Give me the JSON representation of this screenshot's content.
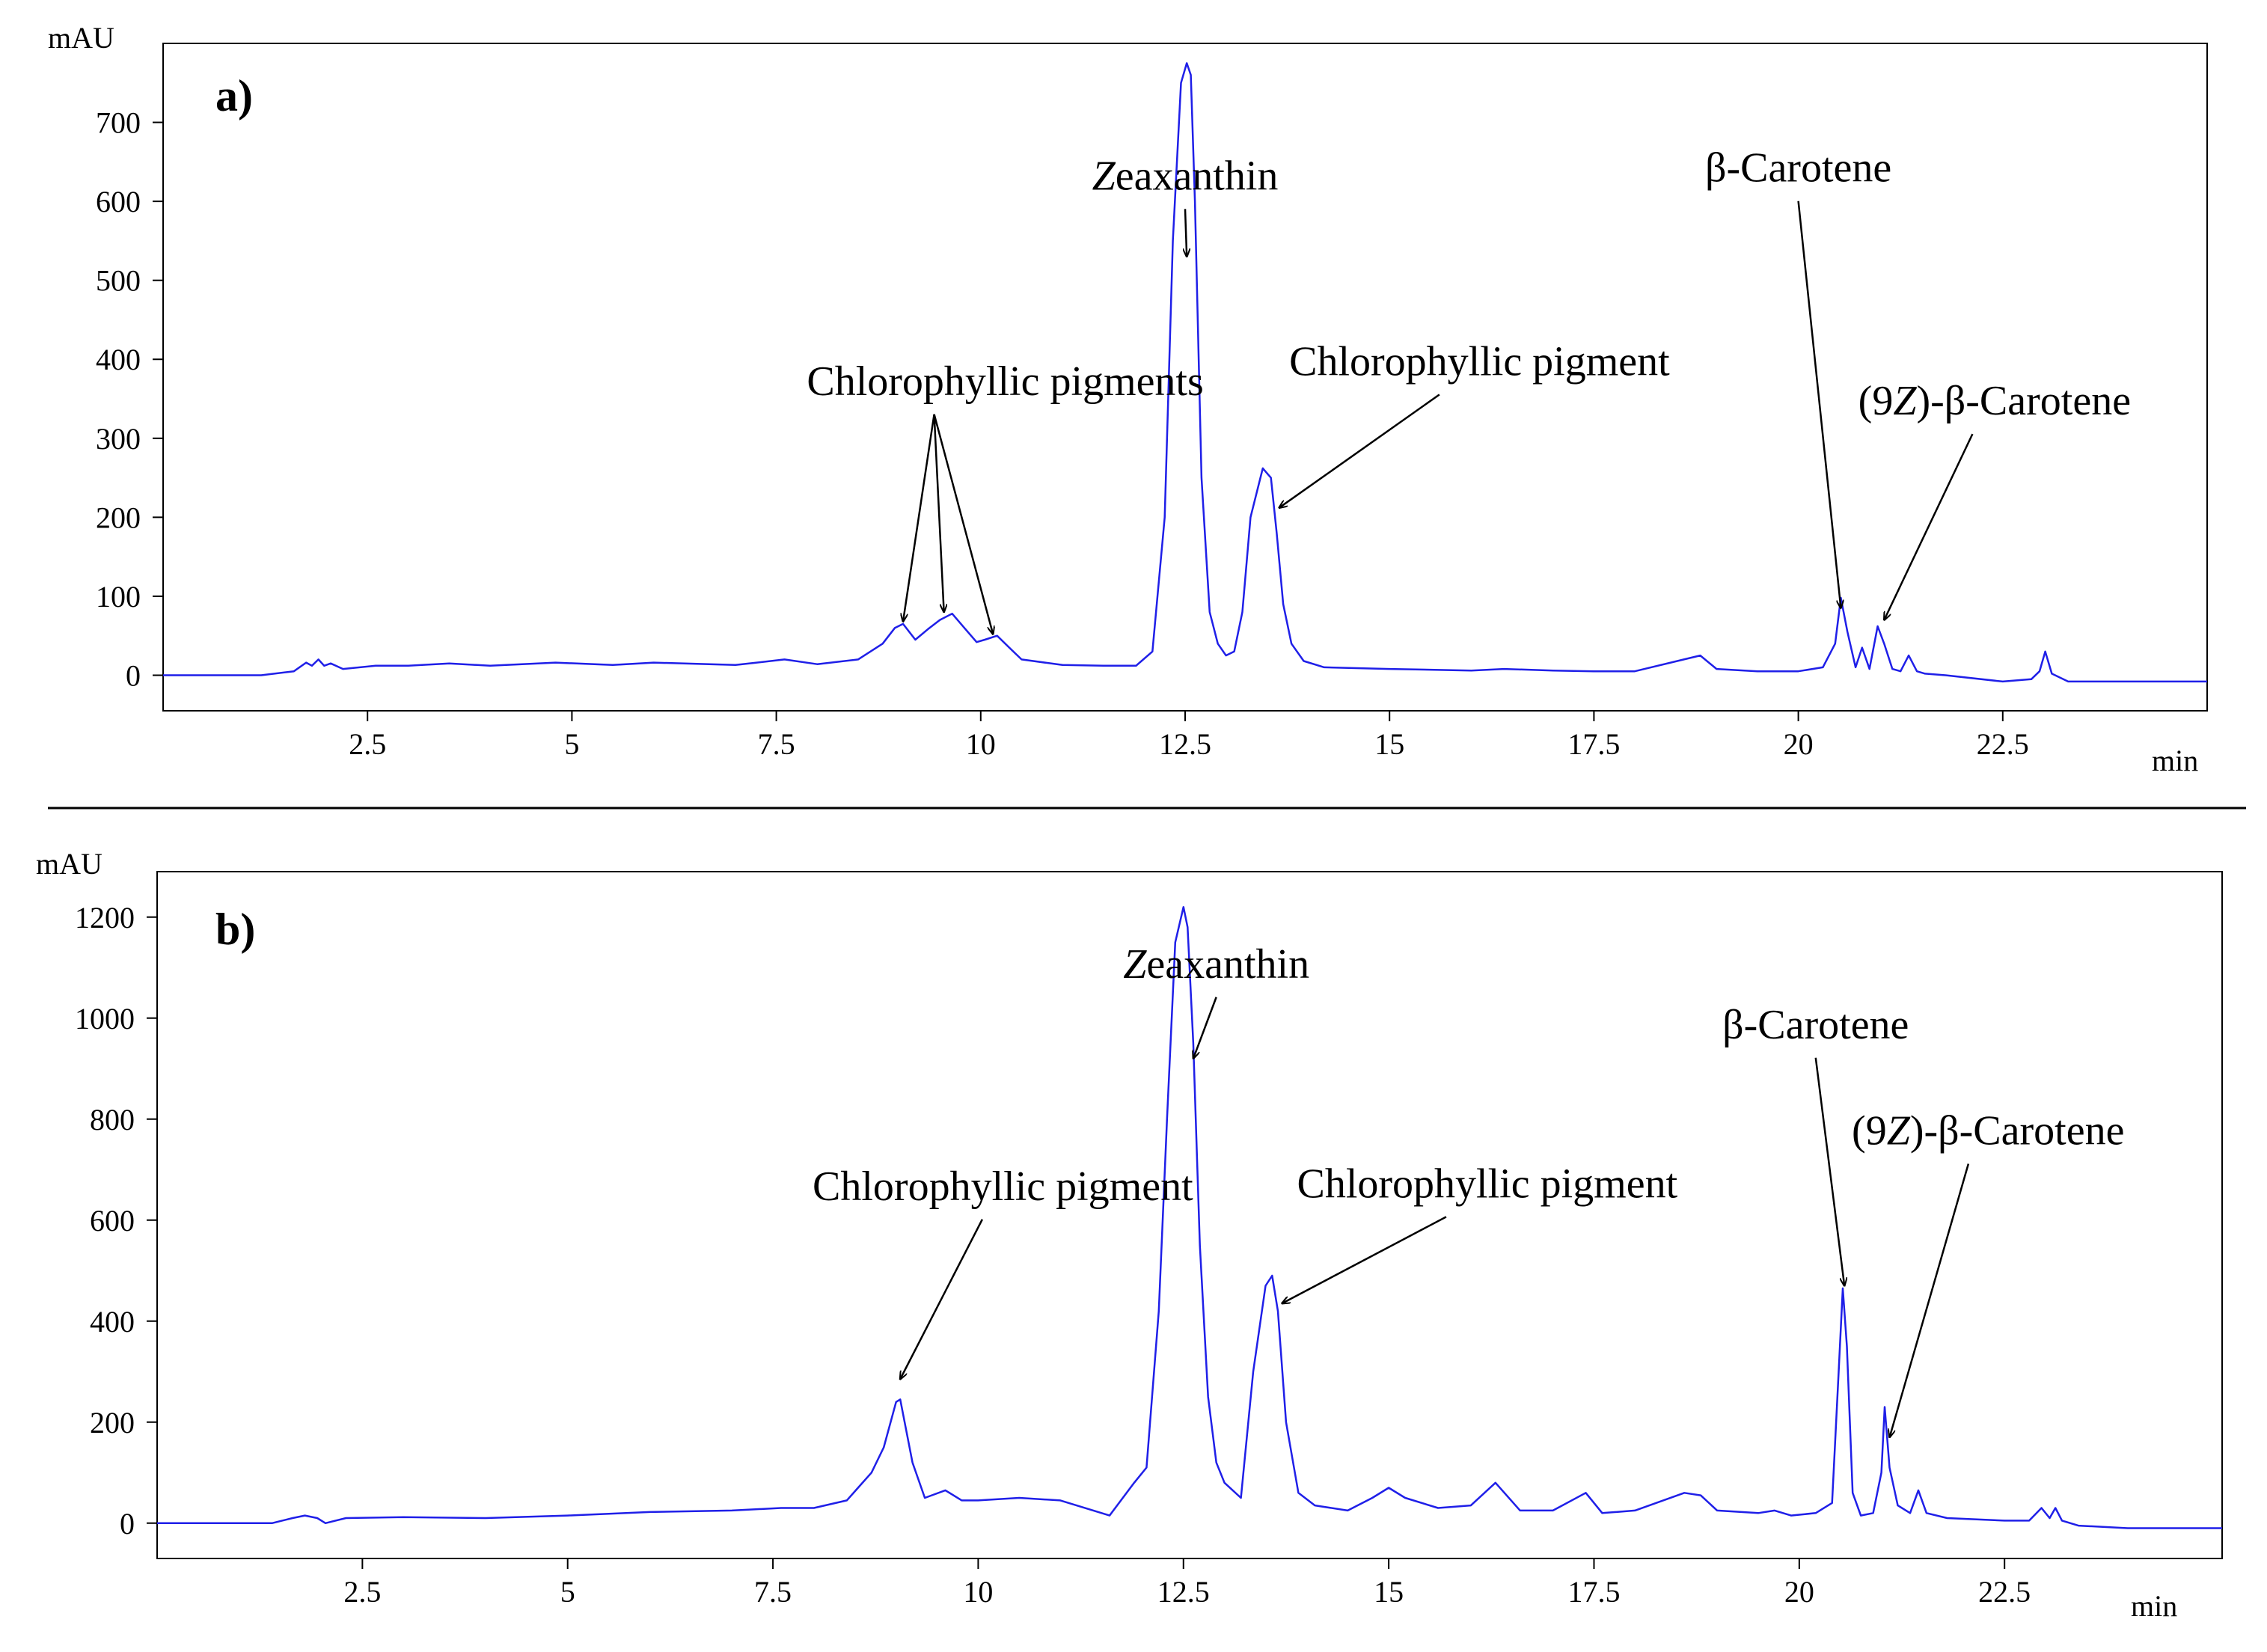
{
  "chart_data": [
    {
      "type": "line",
      "panel_label": "a)",
      "ylabel": "mAU",
      "xlabel": "min",
      "xlim": [
        0,
        25
      ],
      "ylim": [
        -45,
        800
      ],
      "xticks": [
        2.5,
        5,
        7.5,
        10,
        12.5,
        15,
        17.5,
        20,
        22.5
      ],
      "xtick_labels": [
        "2.5",
        "5",
        "7.5",
        "10",
        "12.5",
        "15",
        "17.5",
        "20",
        "22.5"
      ],
      "yticks": [
        0,
        100,
        200,
        300,
        400,
        500,
        600,
        700
      ],
      "ytick_labels": [
        "0",
        "100",
        "200",
        "300",
        "400",
        "500",
        "600",
        "700"
      ],
      "line_color": "#1f1fe8",
      "series": [
        {
          "x": [
            0,
            1.2,
            1.6,
            1.75,
            1.82,
            1.9,
            1.97,
            2.05,
            2.2,
            2.6,
            3.0,
            3.5,
            4.0,
            4.8,
            5.5,
            6.0,
            7.0,
            7.6,
            8.0,
            8.5,
            8.8,
            8.95,
            9.05,
            9.2,
            9.35,
            9.5,
            9.65,
            9.8,
            9.95,
            10.05,
            10.2,
            10.35,
            10.5,
            11.0,
            11.5,
            11.9,
            12.1,
            12.25,
            12.35,
            12.45,
            12.52,
            12.57,
            12.62,
            12.7,
            12.8,
            12.9,
            13.0,
            13.1,
            13.2,
            13.3,
            13.45,
            13.55,
            13.62,
            13.7,
            13.8,
            13.95,
            14.2,
            15.0,
            16.0,
            16.4,
            17.0,
            17.5,
            18.0,
            18.6,
            18.8,
            19.0,
            19.5,
            20.0,
            20.3,
            20.45,
            20.52,
            20.6,
            20.7,
            20.78,
            20.87,
            20.97,
            21.05,
            21.15,
            21.25,
            21.35,
            21.45,
            21.55,
            21.8,
            22.5,
            22.85,
            22.95,
            23.02,
            23.1,
            23.3,
            24.0,
            25.0
          ],
          "y": [
            0,
            0,
            5,
            16,
            12,
            20,
            12,
            15,
            8,
            12,
            12,
            15,
            12,
            16,
            13,
            16,
            13,
            20,
            14,
            20,
            40,
            60,
            65,
            45,
            58,
            70,
            78,
            60,
            42,
            45,
            50,
            35,
            20,
            13,
            12,
            12,
            30,
            200,
            550,
            750,
            775,
            760,
            600,
            250,
            80,
            40,
            25,
            30,
            80,
            200,
            262,
            250,
            180,
            90,
            40,
            18,
            10,
            8,
            6,
            8,
            6,
            5,
            5,
            20,
            25,
            8,
            5,
            5,
            10,
            40,
            98,
            55,
            10,
            35,
            8,
            62,
            40,
            8,
            5,
            25,
            5,
            2,
            0,
            -8,
            -5,
            5,
            30,
            2,
            -8,
            -8,
            -8
          ]
        }
      ],
      "annotations": [
        {
          "text": "Zeaxanthin",
          "x": 12.5,
          "y": 615,
          "targets": [
            [
              12.52,
              530
            ]
          ]
        },
        {
          "text": "Chlorophyllic pigments",
          "x": 10.3,
          "y": 355,
          "targets": [
            [
              9.05,
              68
            ],
            [
              9.55,
              80
            ],
            [
              10.15,
              52
            ]
          ]
        },
        {
          "text": "Chlorophyllic pigment",
          "x": 16.1,
          "y": 380,
          "targets": [
            [
              13.65,
              212
            ]
          ]
        },
        {
          "text": "β-Carotene",
          "x": 20.0,
          "y": 625,
          "targets": [
            [
              20.52,
              85
            ]
          ]
        },
        {
          "text": "(9Z)-β-Carotene",
          "x": 22.4,
          "y": 330,
          "targets": [
            [
              21.05,
              70
            ]
          ]
        }
      ]
    },
    {
      "type": "line",
      "panel_label": "b)",
      "ylabel": "mAU",
      "xlabel": "min",
      "xlim": [
        0,
        25.15
      ],
      "ylim": [
        -70,
        1290
      ],
      "xticks": [
        2.5,
        5,
        7.5,
        10,
        12.5,
        15,
        17.5,
        20,
        22.5
      ],
      "xtick_labels": [
        "2.5",
        "5",
        "7.5",
        "10",
        "12.5",
        "15",
        "17.5",
        "20",
        "22.5"
      ],
      "yticks": [
        0,
        200,
        400,
        600,
        800,
        1000,
        1200
      ],
      "ytick_labels": [
        "0",
        "200",
        "400",
        "600",
        "800",
        "1000",
        "1200"
      ],
      "line_color": "#1f1fe8",
      "series": [
        {
          "x": [
            0,
            1.4,
            1.65,
            1.8,
            1.95,
            2.05,
            2.3,
            3.0,
            4.0,
            5.0,
            6.0,
            7.0,
            7.6,
            8.0,
            8.4,
            8.7,
            8.85,
            9.0,
            9.05,
            9.2,
            9.35,
            9.6,
            9.8,
            10.0,
            10.5,
            11.0,
            11.6,
            11.9,
            12.05,
            12.2,
            12.3,
            12.4,
            12.5,
            12.55,
            12.62,
            12.7,
            12.8,
            12.9,
            13.0,
            13.2,
            13.35,
            13.5,
            13.58,
            13.65,
            13.75,
            13.9,
            14.1,
            14.5,
            14.8,
            15.0,
            15.2,
            15.6,
            16.0,
            16.3,
            16.6,
            17.0,
            17.4,
            17.6,
            18.0,
            18.6,
            18.8,
            19.0,
            19.5,
            19.7,
            19.9,
            20.2,
            20.4,
            20.48,
            20.53,
            20.58,
            20.65,
            20.75,
            20.9,
            21.0,
            21.04,
            21.1,
            21.2,
            21.35,
            21.45,
            21.55,
            21.8,
            22.5,
            22.8,
            22.95,
            23.05,
            23.12,
            23.2,
            23.4,
            24.0,
            25.15
          ],
          "y": [
            0,
            0,
            10,
            15,
            10,
            0,
            10,
            12,
            10,
            15,
            22,
            25,
            30,
            30,
            45,
            100,
            150,
            240,
            245,
            120,
            50,
            65,
            45,
            45,
            50,
            45,
            15,
            80,
            110,
            420,
            800,
            1150,
            1220,
            1180,
            950,
            550,
            250,
            120,
            80,
            50,
            300,
            470,
            490,
            420,
            200,
            60,
            35,
            25,
            50,
            70,
            50,
            30,
            35,
            80,
            25,
            25,
            60,
            20,
            25,
            60,
            55,
            25,
            20,
            25,
            15,
            20,
            40,
            300,
            465,
            350,
            60,
            15,
            20,
            100,
            230,
            110,
            35,
            20,
            65,
            20,
            10,
            5,
            5,
            30,
            10,
            30,
            5,
            -5,
            -10,
            -10
          ]
        }
      ],
      "annotations": [
        {
          "text": "Zeaxanthin",
          "x": 12.9,
          "y": 1080,
          "targets": [
            [
              12.62,
              920
            ]
          ]
        },
        {
          "text": "Chlorophyllic pigment",
          "x": 10.3,
          "y": 640,
          "targets": [
            [
              9.05,
              285
            ]
          ]
        },
        {
          "text": "Chlorophyllic pigment",
          "x": 16.2,
          "y": 645,
          "targets": [
            [
              13.7,
              435
            ]
          ]
        },
        {
          "text": "β-Carotene",
          "x": 20.2,
          "y": 960,
          "targets": [
            [
              20.55,
              470
            ]
          ]
        },
        {
          "text": "(9Z)-β-Carotene",
          "x": 22.3,
          "y": 750,
          "targets": [
            [
              21.1,
              170
            ]
          ]
        }
      ]
    }
  ]
}
